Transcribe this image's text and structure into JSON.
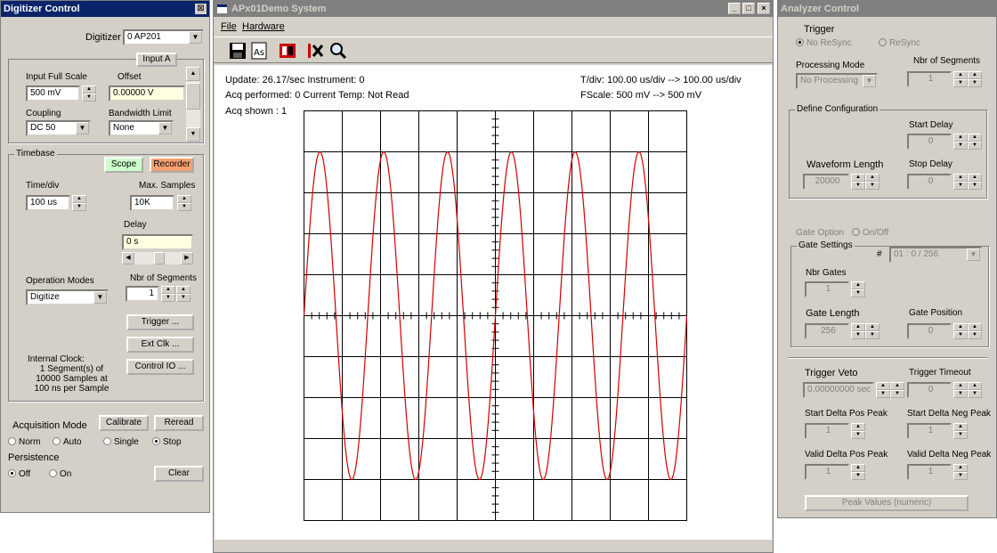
{
  "digitizer": {
    "title": "Digitizer Control",
    "close_glyph": "⊠",
    "digitizer_label": "Digitizer",
    "digitizer_value": "0 AP201",
    "input_tab": "Input A",
    "ifs_label": "Input Full Scale",
    "ifs_value": "500 mV",
    "offset_label": "Offset",
    "offset_value": "0.00000 V",
    "coupling_label": "Coupling",
    "coupling_value": "DC 50",
    "bwlimit_label": "Bandwidth Limit",
    "bwlimit_value": "None",
    "timebase_title": "Timebase",
    "scope_btn": "Scope",
    "recorder_btn": "Recorder",
    "timediv_label": "Time/div",
    "timediv_value": "100 us",
    "maxsamples_label": "Max. Samples",
    "maxsamples_value": "10K",
    "delay_label": "Delay",
    "delay_value": "0 s",
    "opmodes_label": "Operation Modes",
    "opmodes_value": "Digitize",
    "nbrseg_label": "Nbr of Segments",
    "nbrseg_value": "1",
    "trigger_btn": "Trigger ...",
    "extclk_btn": "Ext Clk ...",
    "controlio_btn": "Control IO ...",
    "clock_lines": [
      "Internal Clock:",
      "1 Segment(s) of",
      "10000 Samples at",
      "100 ns per Sample"
    ],
    "acqmode_label": "Acquisition Mode",
    "calibrate_btn": "Calibrate",
    "reread_btn": "Reread",
    "radio_norm": "Norm",
    "radio_auto": "Auto",
    "radio_single": "Single",
    "radio_stop": "Stop",
    "persistence_label": "Persistence",
    "radio_off": "Off",
    "radio_on": "On",
    "clear_btn": "Clear"
  },
  "demo": {
    "title": "APx01Demo System",
    "menu_file": "File",
    "menu_hardware": "Hardware",
    "ctrl_min": "_",
    "ctrl_max": "□",
    "ctrl_close": "×",
    "update_text": "Update: 26.17/sec  Instrument: 0",
    "acq_performed_text": "Acq performed:   0   Current Temp: Not Read",
    "acq_shown_text": "Acq shown   :   1",
    "tdiv_text": "T/div:  100.00 us/div  -->  100.00 us/div",
    "fscale_text": "FScale: 500 mV --> 500 mV"
  },
  "chart_data": {
    "type": "line",
    "x_divisions": 10,
    "y_divisions": 10,
    "time_per_div_us": 100,
    "full_scale_mV": 500,
    "waveform": {
      "shape": "sine",
      "cycles": 6,
      "amplitude_div": 4,
      "phase": "rising from zero at left edge",
      "color": "#d00000"
    },
    "grid": true
  },
  "analyzer": {
    "title": "Analyzer Control",
    "trigger_label": "Trigger",
    "no_resync": "No ReSync",
    "resync": "ReSync",
    "proc_mode_label": "Processing Mode",
    "proc_mode_value": "No Processing",
    "nbr_seg_label": "Nbr of Segments",
    "nbr_seg_value": "1",
    "define_config_title": "Define Configuration",
    "start_delay_label": "Start Delay",
    "start_delay_value": "0",
    "wf_length_label": "Waveform Length",
    "wf_length_value": "20000",
    "stop_delay_label": "Stop Delay",
    "stop_delay_value": "0",
    "gate_option_label": "Gate Option",
    "gate_onoff": "On/Off",
    "gate_settings_title": "Gate Settings",
    "hash": "#",
    "gate_combo_value": "01 : 0 / 256",
    "nbr_gates_label": "Nbr Gates",
    "nbr_gates_value": "1",
    "gate_length_label": "Gate Length",
    "gate_length_value": "256",
    "gate_position_label": "Gate Position",
    "gate_position_value": "0",
    "trig_veto_label": "Trigger Veto",
    "trig_veto_value": "0.00000000 sec",
    "trig_timeout_label": "Trigger Timeout",
    "trig_timeout_value": "0",
    "sdpp_label": "Start Delta Pos Peak",
    "sdpp_value": "1",
    "sdnp_label": "Start Delta Neg Peak",
    "sdnp_value": "1",
    "vdpp_label": "Valid Delta Pos Peak",
    "vdpp_value": "1",
    "vdnp_label": "Valid Delta Neg Peak",
    "vdnp_value": "1",
    "peak_values_btn": "Peak Values (numeric)"
  }
}
